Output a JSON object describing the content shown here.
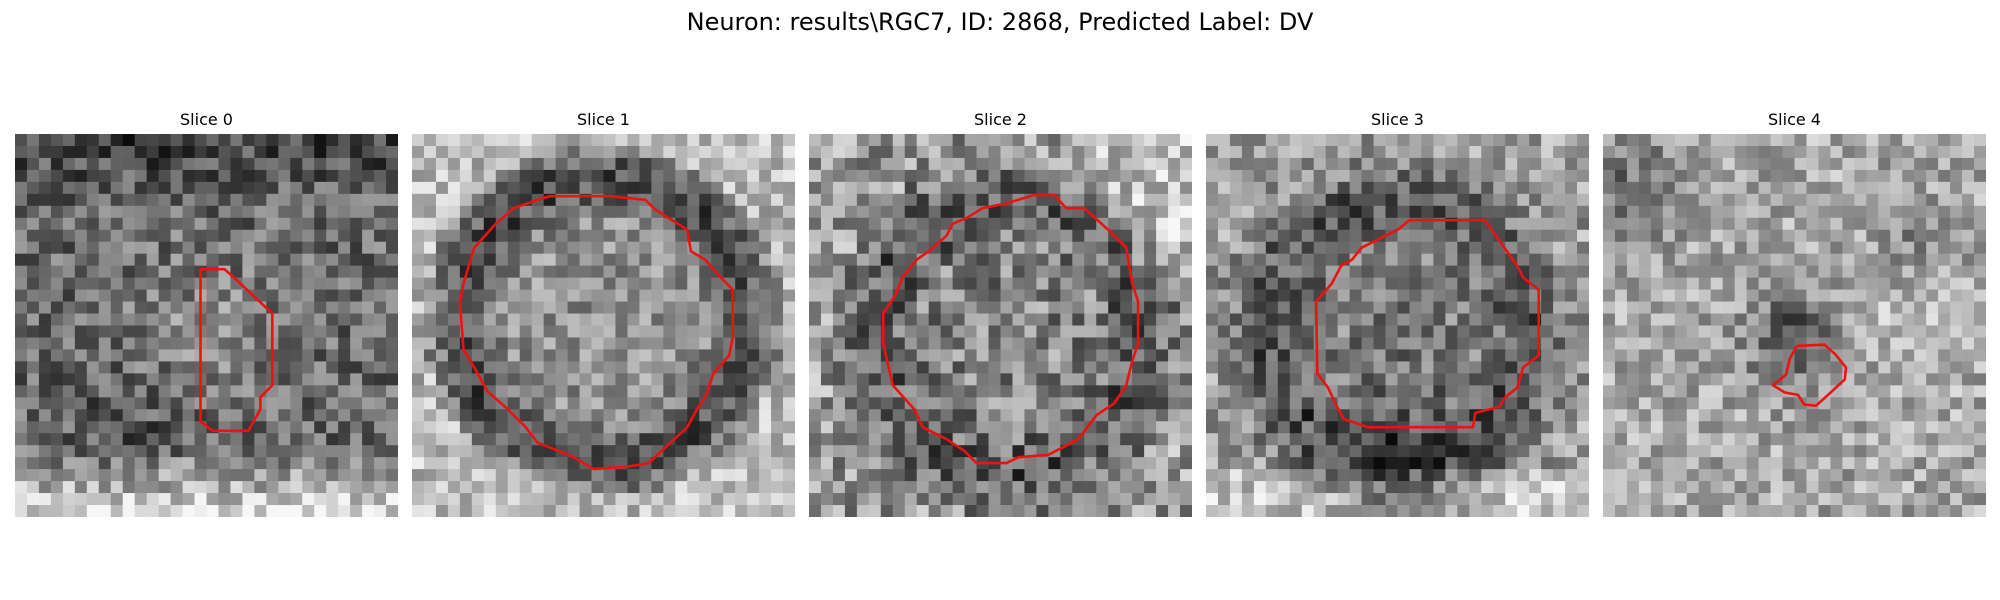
{
  "figure": {
    "title": "Neuron: results\\RGC7, ID: 2868, Predicted Label: DV"
  },
  "panels": [
    {
      "title": "Slice 0"
    },
    {
      "title": "Slice 1"
    },
    {
      "title": "Slice 2"
    },
    {
      "title": "Slice 3"
    },
    {
      "title": "Slice 4"
    }
  ],
  "colors": {
    "contour": "#ee1111",
    "background": "#ffffff"
  }
}
